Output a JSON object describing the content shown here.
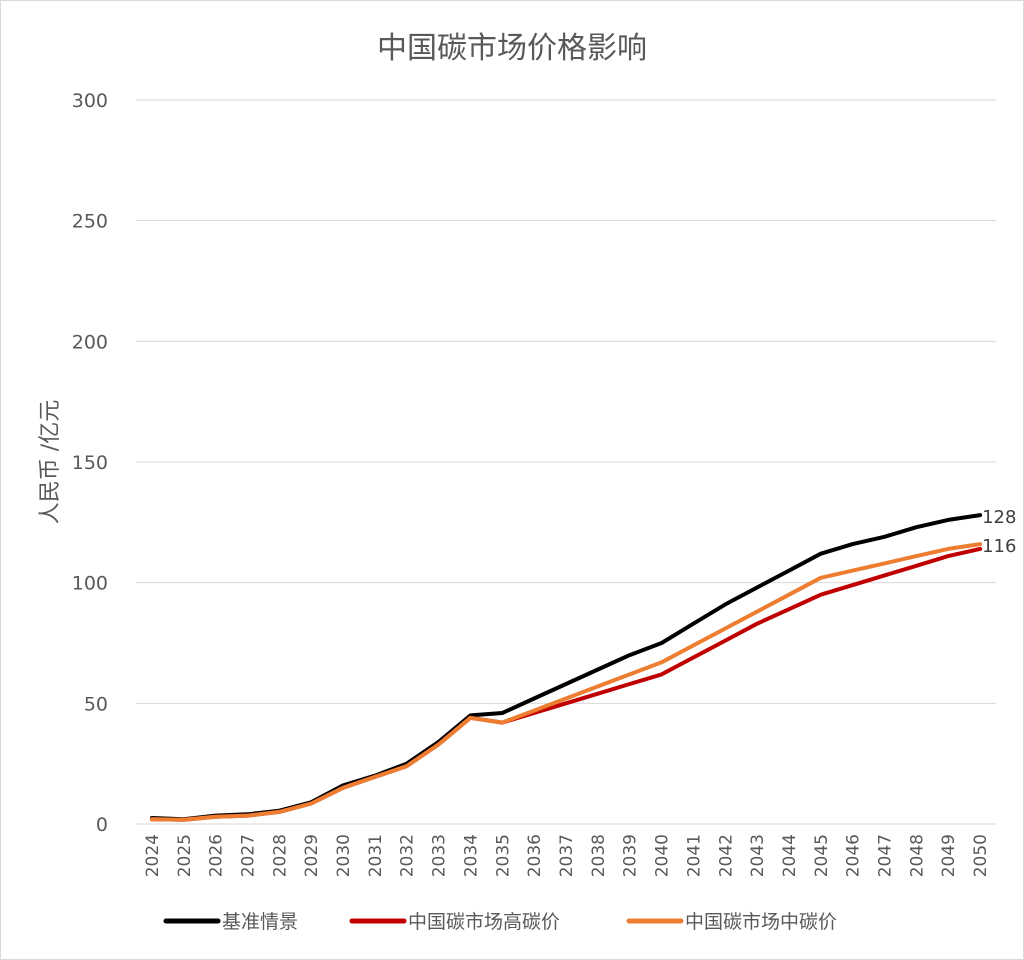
{
  "chart_data": {
    "type": "line",
    "title": "中国碳市场价格影响",
    "ylabel": "人民币 /亿元",
    "xlabel": "",
    "ylim": [
      0,
      300
    ],
    "yticks": [
      0,
      50,
      100,
      150,
      200,
      250,
      300
    ],
    "grid": true,
    "legend_position": "bottom",
    "categories": [
      "2024",
      "2025",
      "2026",
      "2027",
      "2028",
      "2029",
      "2030",
      "2031",
      "2032",
      "2033",
      "2034",
      "2035",
      "2036",
      "2037",
      "2038",
      "2039",
      "2040",
      "2041",
      "2042",
      "2043",
      "2044",
      "2045",
      "2046",
      "2047",
      "2048",
      "2049",
      "2050"
    ],
    "series": [
      {
        "name": "基准情景",
        "color": "#000000",
        "values": [
          2.5,
          2,
          3.5,
          4,
          5.5,
          9,
          16,
          20,
          25,
          34,
          45,
          46,
          52,
          58,
          64,
          70,
          75,
          83,
          91,
          98,
          105,
          112,
          116,
          119,
          123,
          126,
          128
        ],
        "end_label": "128"
      },
      {
        "name": "中国碳市场高碳价",
        "color": "#c00000",
        "values": [
          2,
          1.8,
          3,
          3.5,
          5,
          8.5,
          15,
          19.5,
          24,
          33,
          44,
          42,
          46,
          50,
          54,
          58,
          62,
          69,
          76,
          83,
          89,
          95,
          99,
          103,
          107,
          111,
          114
        ],
        "end_label": ""
      },
      {
        "name": "中国碳市场中碳价",
        "color": "#ed7d31",
        "values": [
          2,
          1.8,
          3,
          3.5,
          5,
          8.5,
          15,
          19.5,
          24,
          33,
          44,
          42,
          47,
          52,
          57,
          62,
          67,
          74,
          81,
          88,
          95,
          102,
          105,
          108,
          111,
          114,
          116
        ],
        "end_label": "116"
      }
    ]
  }
}
